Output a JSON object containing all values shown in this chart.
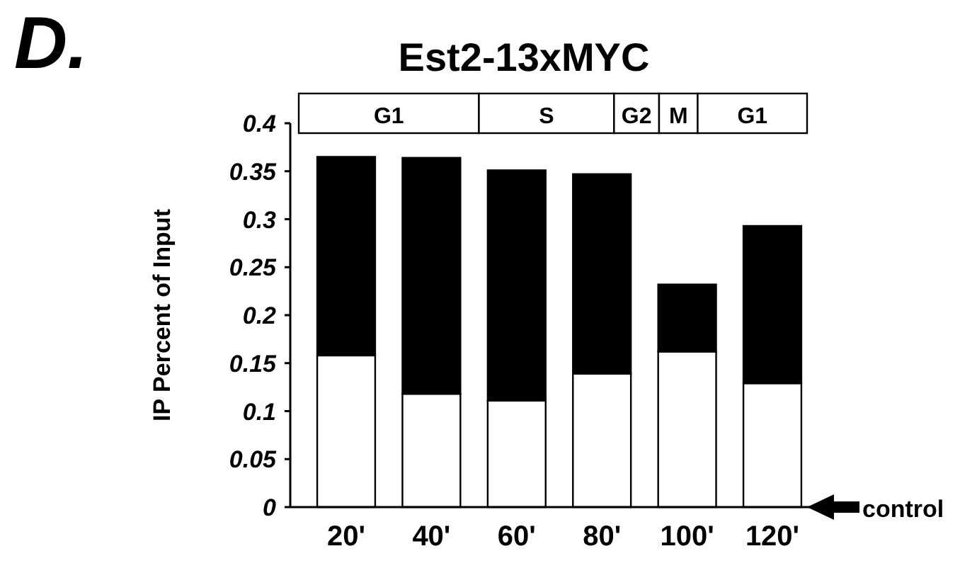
{
  "chart_data": {
    "type": "bar",
    "title": "Est2-13xMYC",
    "ylabel": "IP Percent of Input",
    "categories": [
      "20'",
      "40'",
      "60'",
      "80'",
      "100'",
      "120'"
    ],
    "stacked": true,
    "series": [
      {
        "color": "#ffffff",
        "values": [
          0.158,
          0.118,
          0.111,
          0.139,
          0.162,
          0.129
        ]
      },
      {
        "color": "#000000",
        "values": [
          0.207,
          0.246,
          0.24,
          0.208,
          0.07,
          0.164
        ]
      }
    ],
    "ylim": [
      0,
      0.4
    ],
    "yticks": [
      0,
      0.05,
      0.1,
      0.15,
      0.2,
      0.25,
      0.3,
      0.35,
      0.4
    ],
    "annotations": [
      "D.",
      "G1",
      "S",
      "G2",
      "M",
      "G1",
      "control"
    ]
  }
}
